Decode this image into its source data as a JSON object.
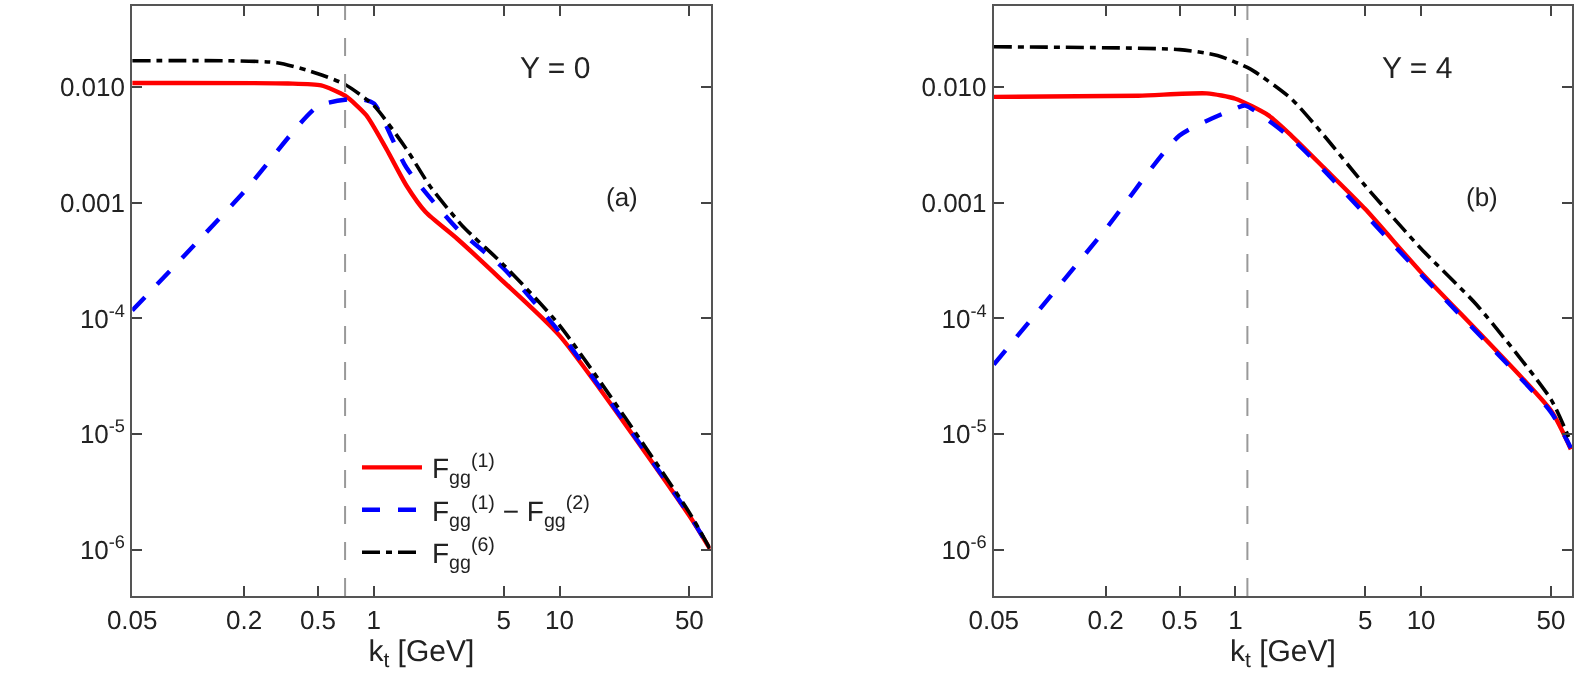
{
  "chart_data": [
    {
      "type": "line",
      "xlabel": "k$_{t}$ [GeV]",
      "log": "xy",
      "xlim": [
        0.05,
        65
      ],
      "ylim": [
        4e-07,
        0.05
      ],
      "xticks": [
        0.05,
        0.2,
        0.5,
        1,
        5,
        10,
        50
      ],
      "yticks": [
        {
          "value": 0.01,
          "label": "0.010"
        },
        {
          "value": 0.001,
          "label": "0.001"
        },
        {
          "value": 0.0001,
          "label": "10$^{-4}$"
        },
        {
          "value": 1e-05,
          "label": "10$^{-5}$"
        },
        {
          "value": 1e-06,
          "label": "10$^{-6}$"
        }
      ],
      "legend": "bottom",
      "annotations": [
        "Y = 0",
        "(a)"
      ],
      "ref_lines": [
        {
          "axis": "x",
          "value": 0.7,
          "color": "#999999",
          "line_style": "dashed"
        }
      ],
      "series": [
        {
          "name": "F$_{gg}$$^{(1)}$",
          "color": "#ff0000",
          "line_style": "solid",
          "x": [
            0.05,
            0.345,
            0.52,
            0.7,
            0.91,
            1.17,
            1.5,
            1.9,
            2.8,
            4.8,
            10,
            50,
            65
          ],
          "values": [
            0.0108,
            0.0107,
            0.0103,
            0.0084,
            0.0057,
            0.0029,
            0.0014,
            0.00083,
            0.00049,
            0.00022,
            7.1e-05,
            1.97e-06,
            1e-06
          ]
        },
        {
          "name": "F$_{gg}$$^{(1)}$ − F$_{gg}$$^{(2)}$",
          "color": "#0000ff",
          "line_style": "dashed",
          "x": [
            0.05,
            0.2,
            0.5,
            0.82,
            1.0,
            1.5,
            2.8,
            5,
            10,
            50,
            65
          ],
          "values": [
            0.000117,
            0.00124,
            0.0068,
            0.0079,
            0.0072,
            0.002,
            0.0006,
            0.00027,
            7.6e-05,
            2e-06,
            1e-06
          ]
        },
        {
          "name": "F$_{gg}$$^{(6)}$",
          "color": "#000000",
          "line_style": "dashdot",
          "x": [
            0.05,
            0.3,
            0.5,
            0.7,
            1,
            1.5,
            2,
            3,
            5,
            10,
            50,
            65
          ],
          "values": [
            0.0168,
            0.0162,
            0.013,
            0.0105,
            0.0069,
            0.0029,
            0.0014,
            0.00063,
            0.00029,
            8.7e-05,
            2.1e-06,
            1e-06
          ]
        }
      ]
    },
    {
      "type": "line",
      "xlabel": "k$_{t}$ [GeV]",
      "log": "xy",
      "xlim": [
        0.05,
        65
      ],
      "ylim": [
        4e-07,
        0.05
      ],
      "xticks": [
        0.05,
        0.2,
        0.5,
        1,
        5,
        10,
        50
      ],
      "yticks": [
        {
          "value": 0.01,
          "label": "0.010"
        },
        {
          "value": 0.001,
          "label": "0.001"
        },
        {
          "value": 0.0001,
          "label": "10$^{-4}$"
        },
        {
          "value": 1e-05,
          "label": "10$^{-5}$"
        },
        {
          "value": 1e-06,
          "label": "10$^{-6}$"
        }
      ],
      "annotations": [
        "Y = 4",
        "(b)"
      ],
      "ref_lines": [
        {
          "axis": "x",
          "value": 1.16,
          "color": "#999999",
          "line_style": "dashed"
        }
      ],
      "series": [
        {
          "color": "#ff0000",
          "line_style": "solid",
          "x": [
            0.05,
            0.3,
            0.7,
            1,
            1.5,
            2,
            3,
            5,
            10,
            50,
            64
          ],
          "values": [
            0.0082,
            0.0084,
            0.0088,
            0.0079,
            0.0057,
            0.0038,
            0.002,
            0.00088,
            0.00025,
            1.6e-05,
            7.4e-06
          ]
        },
        {
          "color": "#0000ff",
          "line_style": "dashed",
          "x": [
            0.05,
            0.2,
            0.5,
            1,
            1.13,
            2,
            3,
            10,
            50,
            64
          ],
          "values": [
            4e-05,
            0.00059,
            0.0038,
            0.0065,
            0.0069,
            0.0036,
            0.0019,
            0.00024,
            1.55e-05,
            7.6e-06
          ]
        },
        {
          "color": "#000000",
          "line_style": "dashdot",
          "x": [
            0.05,
            0.5,
            0.8,
            1.2,
            2,
            3,
            5,
            10,
            20,
            50,
            64
          ],
          "values": [
            0.0222,
            0.021,
            0.0187,
            0.0143,
            0.0079,
            0.0038,
            0.0014,
            0.0004,
            0.00013,
            2e-05,
            8.5e-06
          ]
        }
      ]
    }
  ]
}
